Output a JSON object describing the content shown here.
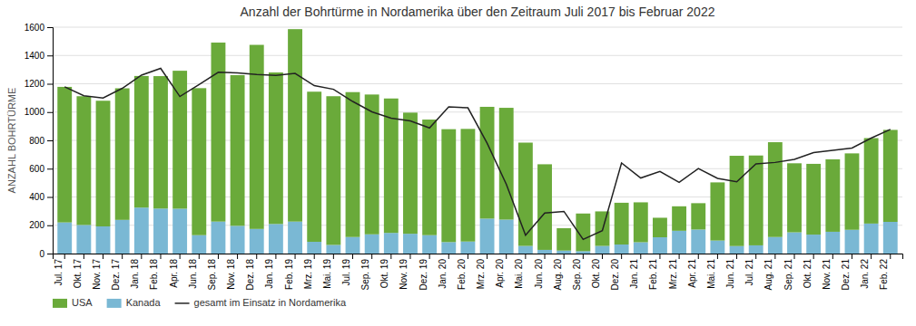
{
  "chart_data": {
    "type": "bar",
    "title": "Anzahl der Bohrtürme in Nordamerika über den Zeitraum Juli 2017 bis Februar 2022",
    "y_label": "ANZAHL BOHRTÜRME",
    "categories": [
      "Jul. 17",
      "Okt. 17",
      "Nov. 17",
      "Dez. 17",
      "Jan. 18",
      "Feb. 18",
      "Apr. 18",
      "Jun. 18",
      "Sep. 18",
      "Nov. 18",
      "Dez. 18",
      "Jan. 19",
      "Feb. 19",
      "Mrz. 19",
      "Mai. 19",
      "Jul. 19",
      "Sep. 19",
      "Okt. 19",
      "Nov. 19",
      "Dez. 19",
      "Jan. 20",
      "Feb. 20",
      "Mrz. 20",
      "Apr. 20",
      "Mai. 20",
      "Jun. 20",
      "Aug. 20",
      "Sep. 20",
      "Okt. 20",
      "Dez. 20",
      "Jan. 21",
      "Feb. 21",
      "Mrz. 21",
      "Apr. 21",
      "Mai. 21",
      "Jun. 21",
      "Jul. 21",
      "Aug. 21",
      "Sep. 21",
      "Okt. 21",
      "Nov. 21",
      "Dez. 21",
      "Jan. 22",
      "Feb. 22"
    ],
    "series": [
      {
        "name": "USA",
        "color": "#6aaa3a",
        "type": "bar",
        "values": [
          958,
          910,
          888,
          930,
          930,
          936,
          975,
          1039,
          1265,
          1065,
          1301,
          1071,
          1360,
          1061,
          1051,
          1024,
          988,
          950,
          856,
          817,
          798,
          796,
          790,
          790,
          730,
          605,
          158,
          266,
          244,
          295,
          282,
          138,
          173,
          186,
          411,
          638,
          635,
          670,
          488,
          500,
          512,
          540,
          604,
          650
        ]
      },
      {
        "name": "Kanada",
        "color": "#7ab8d4",
        "type": "bar",
        "values": [
          220,
          202,
          192,
          238,
          325,
          318,
          317,
          130,
          226,
          196,
          174,
          209,
          226,
          83,
          61,
          117,
          136,
          146,
          140,
          130,
          81,
          85,
          247,
          240,
          54,
          26,
          21,
          17,
          54,
          64,
          80,
          115,
          161,
          170,
          92,
          53,
          58,
          117,
          150,
          134,
          154,
          168,
          212,
          224
        ]
      },
      {
        "name": "gesamt im Einsatz in Nordamerika",
        "color": "#222222",
        "type": "line",
        "values": [
          1178,
          1115,
          1100,
          1168,
          1261,
          1309,
          1110,
          1194,
          1281,
          1277,
          1265,
          1259,
          1273,
          1187,
          1161,
          1075,
          1002,
          957,
          937,
          888,
          1037,
          1030,
          780,
          490,
          130,
          286,
          298,
          100,
          162,
          640,
          534,
          580,
          503,
          601,
          531,
          507,
          634,
          644,
          666,
          713,
          730,
          746,
          816,
          878
        ]
      }
    ],
    "stacked": true,
    "ylim": [
      0,
      1600
    ],
    "yticks": [
      0,
      200,
      400,
      600,
      800,
      1000,
      1200,
      1400,
      1600
    ],
    "grid": true,
    "legend": "lower left"
  }
}
